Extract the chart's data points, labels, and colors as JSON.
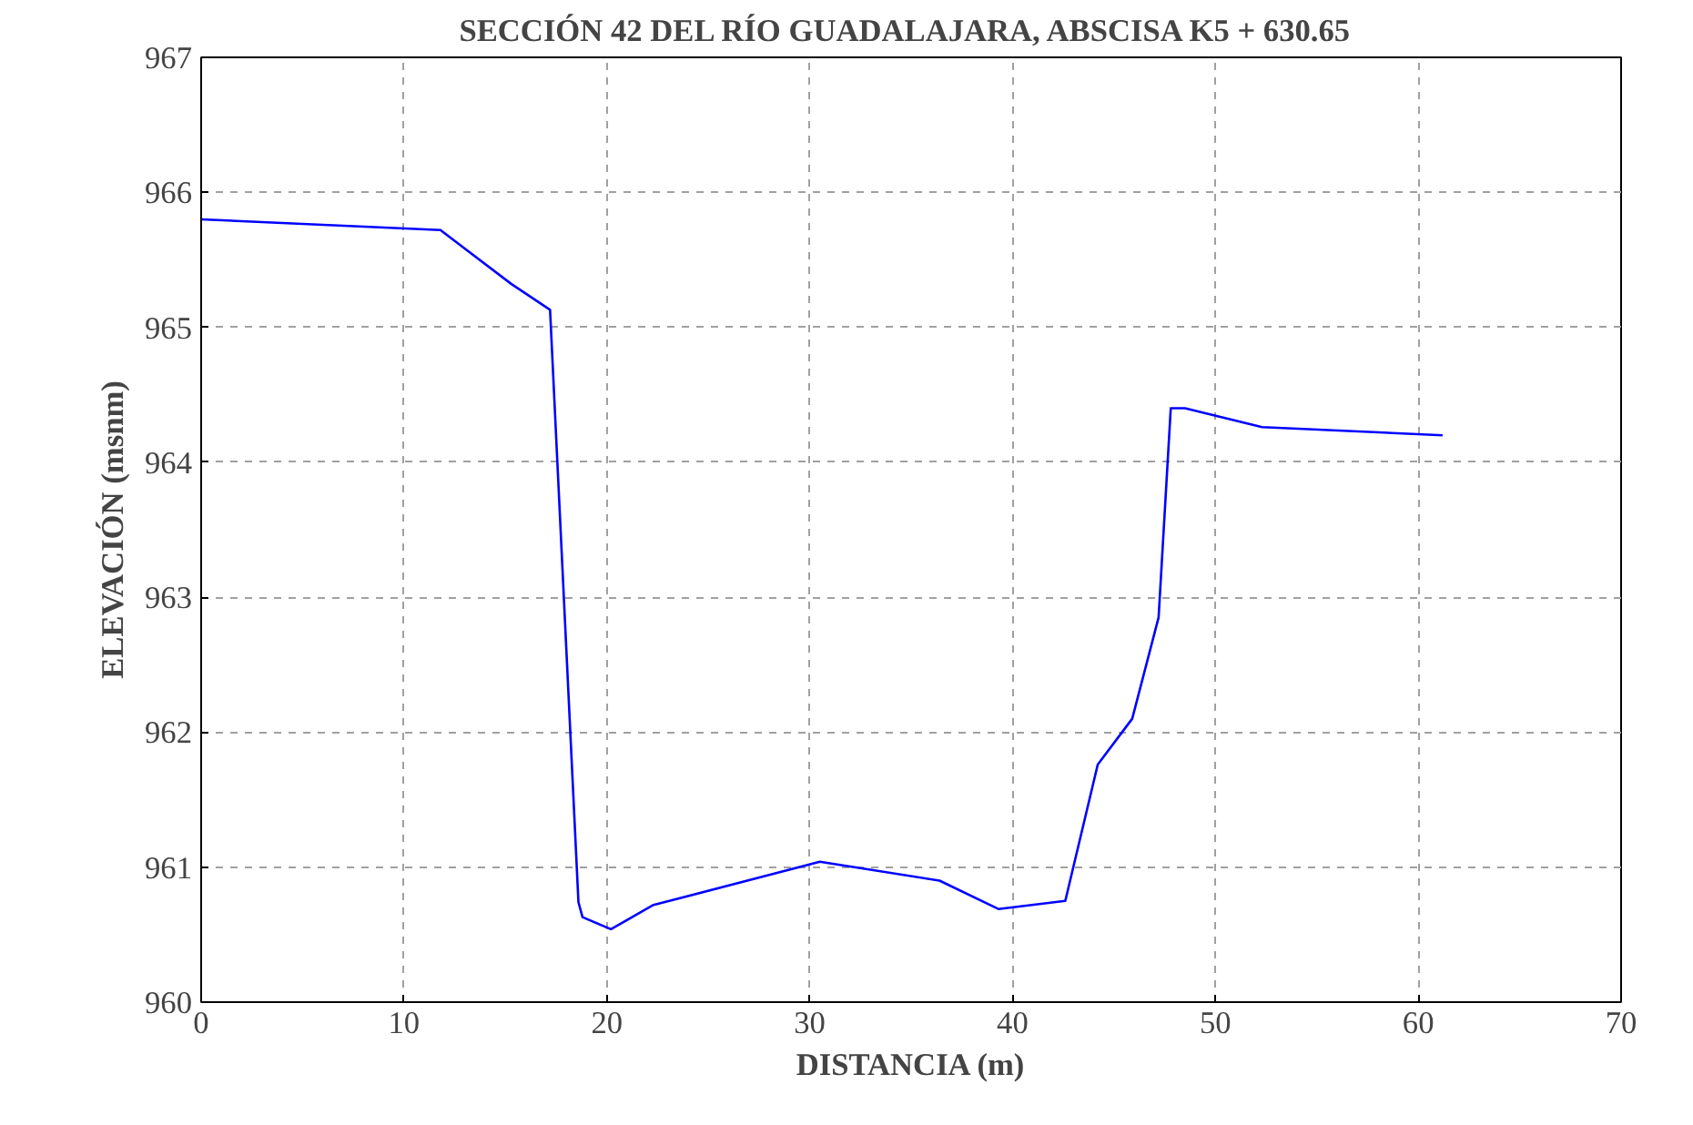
{
  "chart_data": {
    "type": "line",
    "title": "SECCIÓN 42  DEL RÍO GUADALAJARA, ABSCISA K5 + 630.65",
    "xlabel": "DISTANCIA (m)",
    "ylabel": "ELEVACIÓN (msnm)",
    "x": [
      0,
      11.8,
      15.3,
      17.2,
      18.6,
      18.8,
      20.2,
      22.3,
      30.5,
      36.4,
      39.3,
      42.6,
      44.2,
      45.9,
      47.2,
      47.8,
      48.5,
      52.3,
      61.2
    ],
    "series": [
      {
        "color": "#0000ff",
        "values": [
          965.8,
          965.72,
          965.32,
          965.13,
          960.74,
          960.63,
          960.54,
          960.72,
          961.04,
          960.9,
          960.69,
          960.75,
          961.76,
          962.1,
          962.85,
          964.4,
          964.4,
          964.26,
          964.2
        ]
      }
    ],
    "xlim": [
      0,
      70
    ],
    "xticks": [
      0,
      10,
      20,
      30,
      40,
      50,
      60,
      70
    ],
    "ylim": [
      960,
      967
    ],
    "yticks": [
      960,
      961,
      962,
      963,
      964,
      965,
      966,
      967
    ],
    "grid": true,
    "marker": "none",
    "line_style": "solid"
  }
}
